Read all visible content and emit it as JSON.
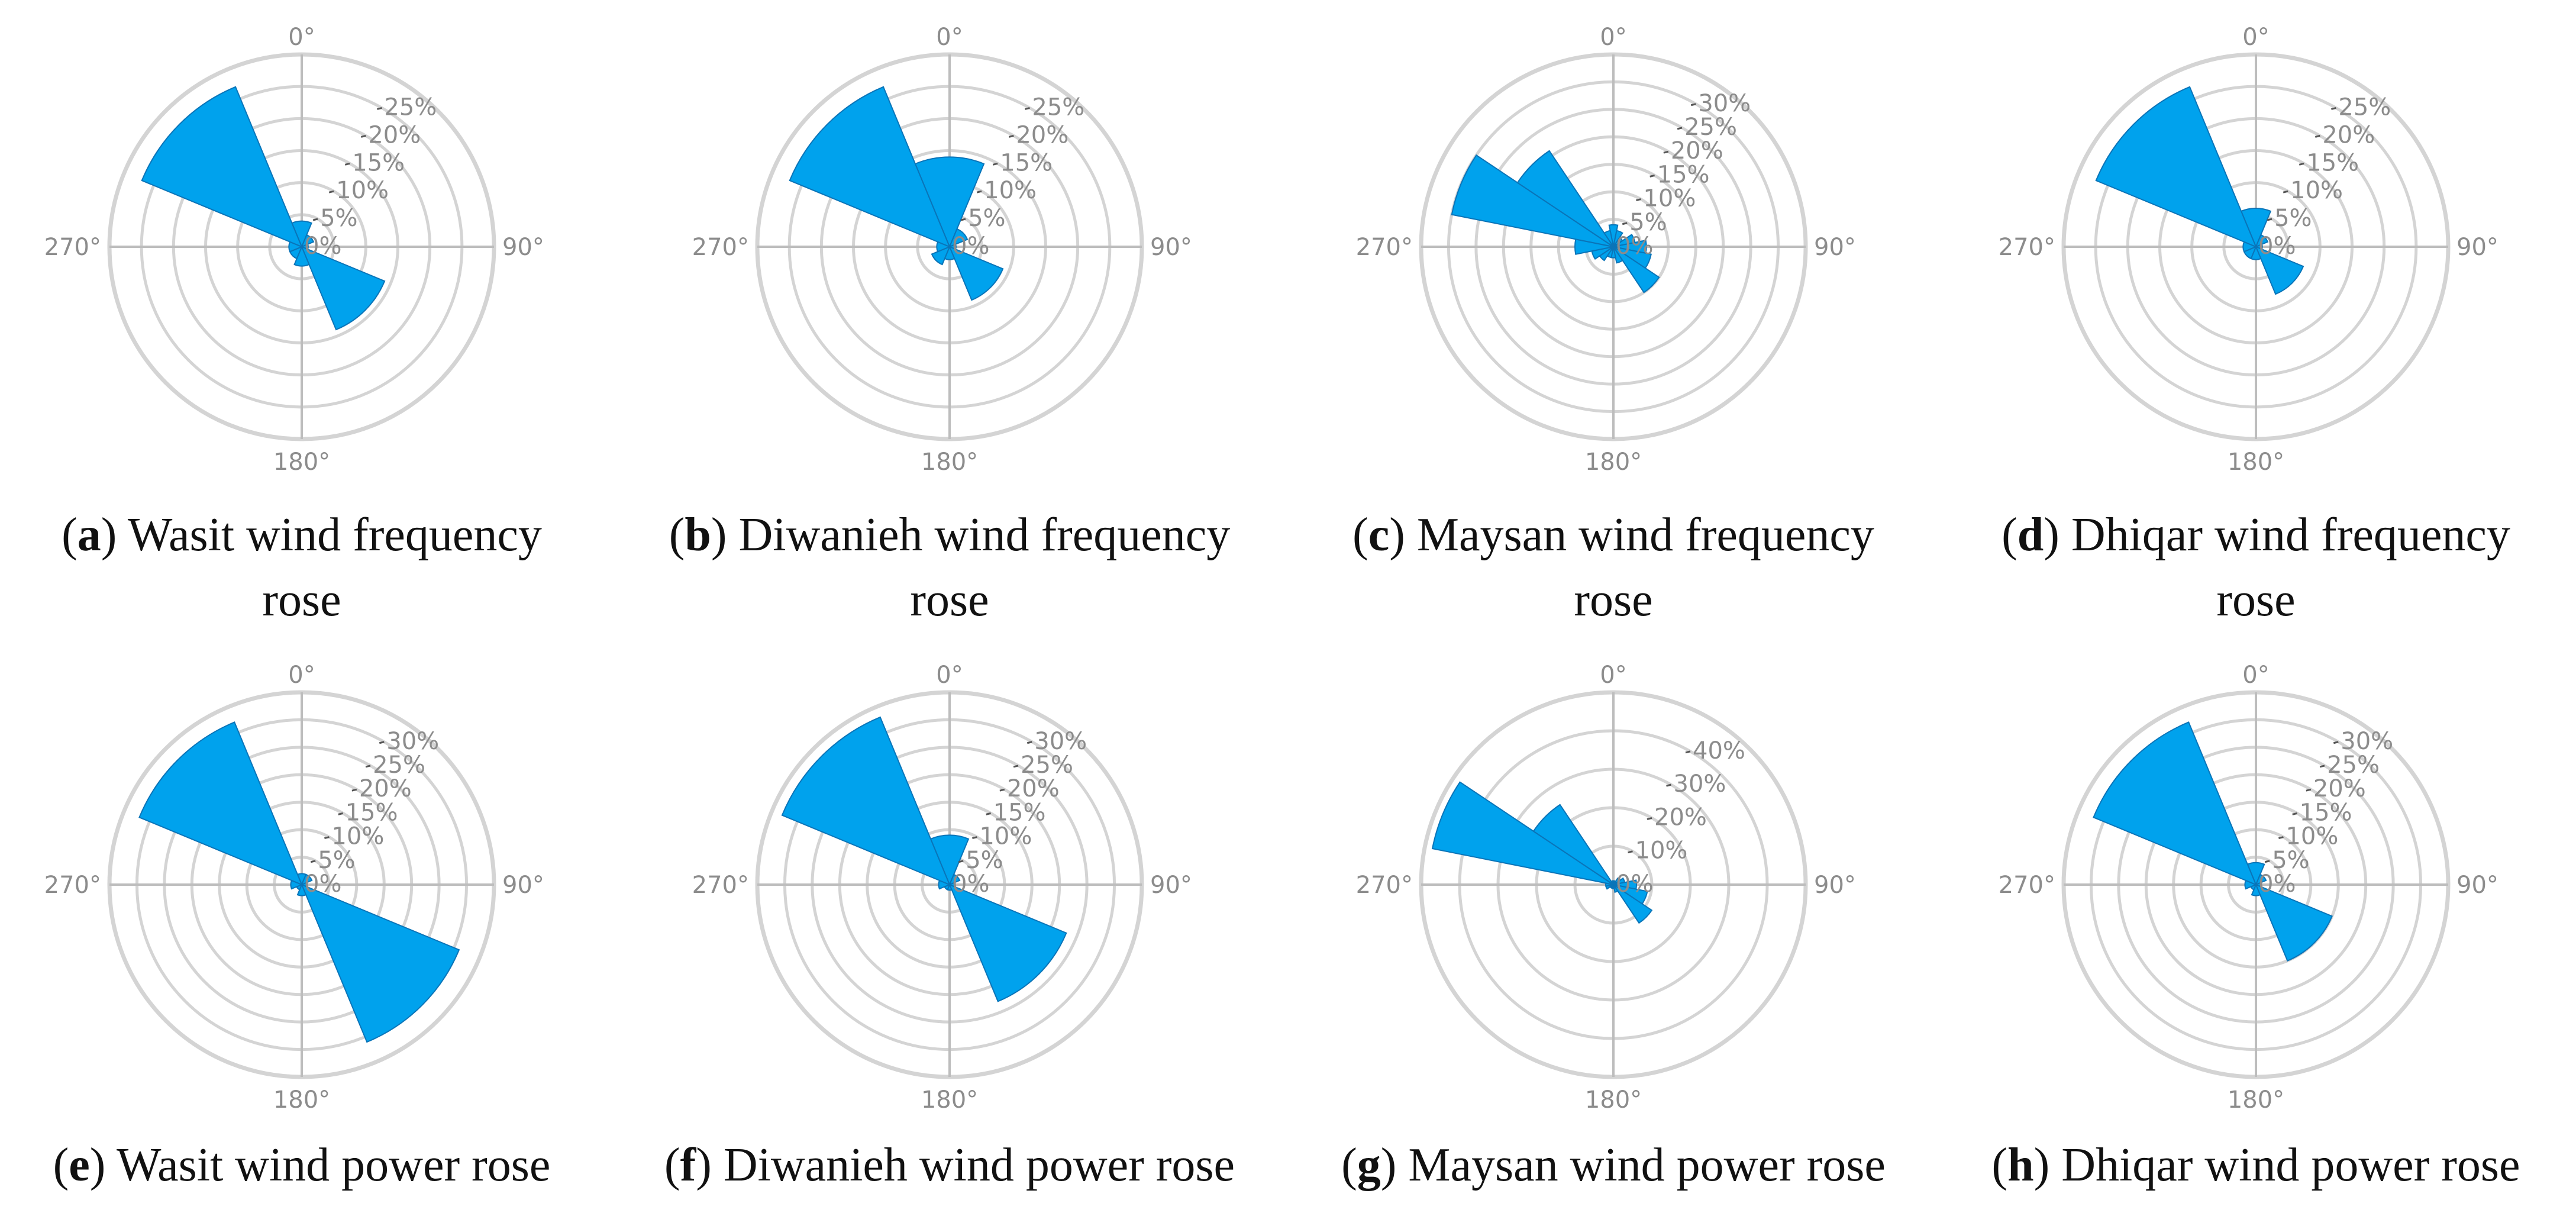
{
  "colors": {
    "bar": "#00a2ed",
    "bar_edge": "#0a74b8",
    "grid": "#d4d4d4",
    "label": "#8c8c8c",
    "axis": "#bdbdbd"
  },
  "angle_labels": [
    "0°",
    "90°",
    "180°",
    "270°"
  ],
  "chart_data": [
    {
      "type": "bar",
      "polar": true,
      "label": "a",
      "caption_lines": [
        "Wasit wind frequency",
        "rose"
      ],
      "radial_ticks": [
        0,
        5,
        10,
        15,
        20,
        25
      ],
      "radial_tick_labels": [
        "0%",
        "5%",
        "10%",
        "15%",
        "20%",
        "25%"
      ],
      "rmax": 30,
      "directions": [
        0,
        45,
        90,
        135,
        180,
        225,
        270,
        315
      ],
      "values": [
        4,
        2,
        1,
        14,
        3,
        2,
        2,
        27
      ]
    },
    {
      "type": "bar",
      "polar": true,
      "label": "b",
      "caption_lines": [
        "Diwanieh wind frequency",
        "rose"
      ],
      "radial_ticks": [
        0,
        5,
        10,
        15,
        20,
        25
      ],
      "radial_tick_labels": [
        "0%",
        "5%",
        "10%",
        "15%",
        "20%",
        "25%"
      ],
      "rmax": 30,
      "directions": [
        0,
        45,
        90,
        135,
        180,
        225,
        270,
        315
      ],
      "values": [
        14,
        3,
        1,
        9,
        2,
        3,
        2,
        27
      ]
    },
    {
      "type": "bar",
      "polar": true,
      "label": "c",
      "caption_lines": [
        "Maysan wind frequency",
        "rose"
      ],
      "radial_ticks": [
        0,
        5,
        10,
        15,
        20,
        25,
        30
      ],
      "radial_tick_labels": [
        "0%",
        "5%",
        "10%",
        "15%",
        "20%",
        "25%",
        "30%"
      ],
      "rmax": 35,
      "directions": [
        0,
        22.5,
        45,
        67.5,
        90,
        112.5,
        135,
        157.5,
        180,
        202.5,
        225,
        247.5,
        270,
        292.5,
        315,
        337.5
      ],
      "values": [
        4,
        3,
        2,
        4,
        6,
        7,
        10,
        3,
        2,
        2,
        3,
        4,
        7,
        30,
        21,
        3
      ]
    },
    {
      "type": "bar",
      "polar": true,
      "label": "d",
      "caption_lines": [
        "Dhiqar wind frequency",
        "rose"
      ],
      "radial_ticks": [
        0,
        5,
        10,
        15,
        20,
        25
      ],
      "radial_tick_labels": [
        "0%",
        "5%",
        "10%",
        "15%",
        "20%",
        "25%"
      ],
      "rmax": 30,
      "directions": [
        0,
        45,
        90,
        135,
        180,
        225,
        270,
        315
      ],
      "values": [
        6,
        2,
        1,
        8,
        2,
        2,
        2,
        27
      ]
    },
    {
      "type": "bar",
      "polar": true,
      "label": "e",
      "caption_lines": [
        "Wasit wind power rose"
      ],
      "radial_ticks": [
        0,
        5,
        10,
        15,
        20,
        25,
        30
      ],
      "radial_tick_labels": [
        "0%",
        "5%",
        "10%",
        "15%",
        "20%",
        "25%",
        "30%"
      ],
      "rmax": 35,
      "directions": [
        0,
        45,
        90,
        135,
        180,
        225,
        270,
        315
      ],
      "values": [
        2,
        2,
        1,
        31,
        2,
        1,
        2,
        32
      ]
    },
    {
      "type": "bar",
      "polar": true,
      "label": "f",
      "caption_lines": [
        "Diwanieh wind power rose"
      ],
      "radial_ticks": [
        0,
        5,
        10,
        15,
        20,
        25,
        30
      ],
      "radial_tick_labels": [
        "0%",
        "5%",
        "10%",
        "15%",
        "20%",
        "25%",
        "30%"
      ],
      "rmax": 35,
      "directions": [
        0,
        45,
        90,
        135,
        180,
        225,
        270,
        315
      ],
      "values": [
        9,
        2,
        1,
        23,
        1,
        1,
        2,
        33
      ]
    },
    {
      "type": "bar",
      "polar": true,
      "label": "g",
      "caption_lines": [
        "Maysan wind power rose"
      ],
      "radial_ticks": [
        0,
        10,
        20,
        30,
        40
      ],
      "radial_tick_labels": [
        "0%",
        "10%",
        "20%",
        "30%",
        "40%"
      ],
      "rmax": 50,
      "directions": [
        0,
        22.5,
        45,
        67.5,
        90,
        112.5,
        135,
        157.5,
        180,
        202.5,
        225,
        247.5,
        270,
        292.5,
        315,
        337.5
      ],
      "values": [
        1,
        1,
        2,
        3,
        6,
        9,
        12,
        2,
        1,
        1,
        1,
        2,
        2,
        48,
        25,
        1
      ]
    },
    {
      "type": "bar",
      "polar": true,
      "label": "h",
      "caption_lines": [
        "Dhiqar wind power rose"
      ],
      "radial_ticks": [
        0,
        5,
        10,
        15,
        20,
        25,
        30
      ],
      "radial_tick_labels": [
        "0%",
        "5%",
        "10%",
        "15%",
        "20%",
        "25%",
        "30%"
      ],
      "rmax": 35,
      "directions": [
        0,
        45,
        90,
        135,
        180,
        225,
        270,
        315
      ],
      "values": [
        4,
        2,
        1,
        15,
        2,
        1,
        2,
        32
      ]
    }
  ]
}
